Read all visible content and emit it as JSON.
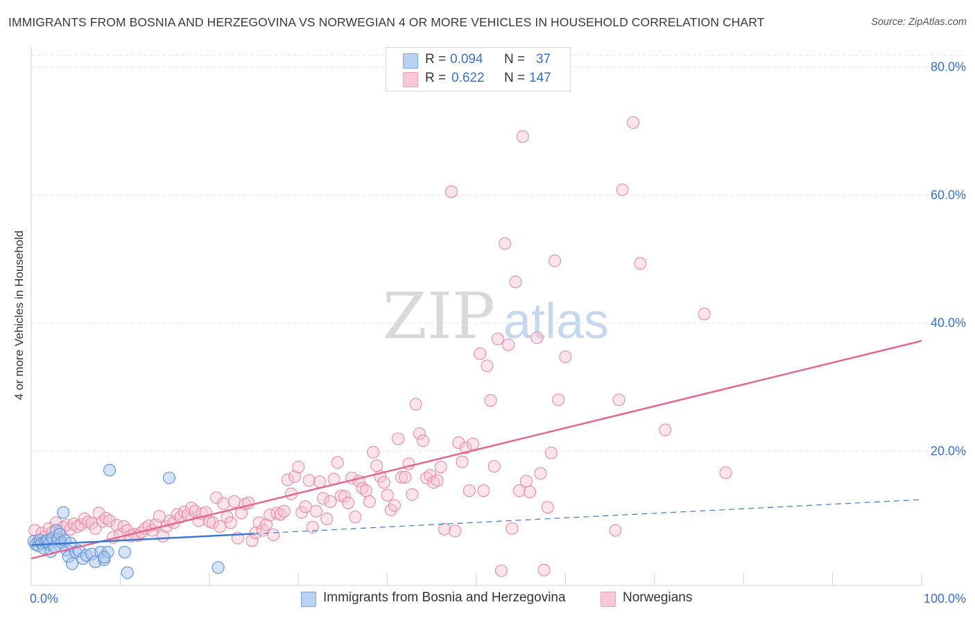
{
  "title": "IMMIGRANTS FROM BOSNIA AND HERZEGOVINA VS NORWEGIAN 4 OR MORE VEHICLES IN HOUSEHOLD CORRELATION CHART",
  "source": "Source: ZipAtlas.com",
  "watermark": {
    "zip": "ZIP",
    "atlas": "atlas"
  },
  "legend": {
    "rows": [
      {
        "r_label": "R =",
        "r_value": "0.094",
        "n_label": "N =",
        "n_value": "37"
      },
      {
        "r_label": "R =",
        "r_value": "0.622",
        "n_label": "N =",
        "n_value": "147"
      }
    ]
  },
  "bottom_legend": [
    "Immigrants from Bosnia and Herzegovina",
    "Norwegians"
  ],
  "colors": {
    "blue_fill": "#a9c8ef",
    "blue_stroke": "#5b8fd6",
    "blue_line": "#3b78d0",
    "pink_fill": "#f8c3d3",
    "pink_stroke": "#e88aa8",
    "pink_line": "#e5668f",
    "grid": "#e2e2e2",
    "tick_text": "#3a6fc9"
  },
  "chart_data": {
    "type": "scatter",
    "title": "IMMIGRANTS FROM BOSNIA AND HERZEGOVINA VS NORWEGIAN 4 OR MORE VEHICLES IN HOUSEHOLD CORRELATION CHART",
    "xlabel": "",
    "ylabel": "4 or more Vehicles in Household",
    "xlim": [
      0,
      100
    ],
    "ylim": [
      -1,
      82
    ],
    "x_ticks": [
      "0.0%",
      "100.0%"
    ],
    "y_ticks": [
      {
        "value": 20,
        "label": "20.0%"
      },
      {
        "value": 40,
        "label": "40.0%"
      },
      {
        "value": 60,
        "label": "60.0%"
      },
      {
        "value": 80,
        "label": "80.0%"
      }
    ],
    "series": [
      {
        "name": "Immigrants from Bosnia and Herzegovina",
        "R": 0.094,
        "N": 37,
        "trend": {
          "x0": 0,
          "y0": 5.3,
          "x1": 100,
          "y1": 12.4,
          "solid_until": 25
        },
        "points": [
          [
            0.3,
            5.9
          ],
          [
            0.5,
            5.4
          ],
          [
            0.8,
            5.2
          ],
          [
            1.0,
            6.1
          ],
          [
            1.2,
            5.6
          ],
          [
            1.4,
            4.8
          ],
          [
            1.6,
            5.8
          ],
          [
            1.8,
            6.0
          ],
          [
            2.0,
            5.5
          ],
          [
            2.2,
            4.3
          ],
          [
            2.4,
            6.4
          ],
          [
            2.6,
            5.0
          ],
          [
            2.8,
            7.6
          ],
          [
            3.0,
            6.2
          ],
          [
            3.2,
            7.0
          ],
          [
            3.4,
            5.7
          ],
          [
            3.6,
            10.4
          ],
          [
            3.8,
            6.0
          ],
          [
            4.0,
            4.5
          ],
          [
            4.2,
            3.5
          ],
          [
            4.4,
            5.6
          ],
          [
            4.6,
            2.4
          ],
          [
            5.0,
            4.2
          ],
          [
            5.4,
            4.4
          ],
          [
            5.8,
            3.2
          ],
          [
            6.2,
            3.7
          ],
          [
            6.8,
            3.9
          ],
          [
            7.2,
            2.7
          ],
          [
            7.8,
            4.2
          ],
          [
            8.2,
            3.0
          ],
          [
            8.6,
            4.2
          ],
          [
            8.2,
            3.4
          ],
          [
            8.8,
            17.0
          ],
          [
            10.5,
            4.2
          ],
          [
            10.8,
            1.0
          ],
          [
            15.5,
            15.8
          ],
          [
            21.0,
            1.8
          ]
        ]
      },
      {
        "name": "Norwegians",
        "R": 0.622,
        "N": 147,
        "trend": {
          "x0": 0,
          "y0": 3.2,
          "x1": 100,
          "y1": 37.2
        },
        "points": [
          [
            0.4,
            7.6
          ],
          [
            0.8,
            6.0
          ],
          [
            1.2,
            7.2
          ],
          [
            1.6,
            6.6
          ],
          [
            2.0,
            7.9
          ],
          [
            2.4,
            7.3
          ],
          [
            2.8,
            8.8
          ],
          [
            3.2,
            7.5
          ],
          [
            3.6,
            8.1
          ],
          [
            4.0,
            8.4
          ],
          [
            4.4,
            7.8
          ],
          [
            4.8,
            8.6
          ],
          [
            5.2,
            8.2
          ],
          [
            5.6,
            8.5
          ],
          [
            6.0,
            9.4
          ],
          [
            6.4,
            8.9
          ],
          [
            6.8,
            8.7
          ],
          [
            7.2,
            7.9
          ],
          [
            7.6,
            10.3
          ],
          [
            8.0,
            9.0
          ],
          [
            8.4,
            9.5
          ],
          [
            8.8,
            9.1
          ],
          [
            9.2,
            6.5
          ],
          [
            9.6,
            8.4
          ],
          [
            10.0,
            7.0
          ],
          [
            10.4,
            8.2
          ],
          [
            10.8,
            7.6
          ],
          [
            11.2,
            6.7
          ],
          [
            11.6,
            7.0
          ],
          [
            12.0,
            6.8
          ],
          [
            12.4,
            7.3
          ],
          [
            12.8,
            7.9
          ],
          [
            13.2,
            8.3
          ],
          [
            13.6,
            7.6
          ],
          [
            14.0,
            8.5
          ],
          [
            14.4,
            9.8
          ],
          [
            14.8,
            6.7
          ],
          [
            15.2,
            8.2
          ],
          [
            15.6,
            9.1
          ],
          [
            16.0,
            8.8
          ],
          [
            16.4,
            10.1
          ],
          [
            16.8,
            9.7
          ],
          [
            17.2,
            10.5
          ],
          [
            17.6,
            10.0
          ],
          [
            18.0,
            11.1
          ],
          [
            18.4,
            10.6
          ],
          [
            18.8,
            9.1
          ],
          [
            19.2,
            10.2
          ],
          [
            19.6,
            10.4
          ],
          [
            20.0,
            9.0
          ],
          [
            20.4,
            8.8
          ],
          [
            20.8,
            12.7
          ],
          [
            21.2,
            8.2
          ],
          [
            21.6,
            11.8
          ],
          [
            22.0,
            9.7
          ],
          [
            22.4,
            8.8
          ],
          [
            22.8,
            12.1
          ],
          [
            23.2,
            6.4
          ],
          [
            23.6,
            10.3
          ],
          [
            24.0,
            11.7
          ],
          [
            24.4,
            11.9
          ],
          [
            24.8,
            6.0
          ],
          [
            25.2,
            7.2
          ],
          [
            25.6,
            8.8
          ],
          [
            26.0,
            7.6
          ],
          [
            26.4,
            8.5
          ],
          [
            26.8,
            10.0
          ],
          [
            27.2,
            6.9
          ],
          [
            27.6,
            10.3
          ],
          [
            28.0,
            10.1
          ],
          [
            28.4,
            10.6
          ],
          [
            28.8,
            15.5
          ],
          [
            29.2,
            13.3
          ],
          [
            29.6,
            16.0
          ],
          [
            30.0,
            17.5
          ],
          [
            30.4,
            10.4
          ],
          [
            30.8,
            11.3
          ],
          [
            31.2,
            15.4
          ],
          [
            31.6,
            8.1
          ],
          [
            32.0,
            10.6
          ],
          [
            32.4,
            15.2
          ],
          [
            32.8,
            12.6
          ],
          [
            33.2,
            9.4
          ],
          [
            33.6,
            12.1
          ],
          [
            34.0,
            15.6
          ],
          [
            34.4,
            18.2
          ],
          [
            34.8,
            13.0
          ],
          [
            35.2,
            12.9
          ],
          [
            35.6,
            11.9
          ],
          [
            36.0,
            15.8
          ],
          [
            36.4,
            9.7
          ],
          [
            36.8,
            15.3
          ],
          [
            37.2,
            14.2
          ],
          [
            37.6,
            13.8
          ],
          [
            38.0,
            12.1
          ],
          [
            38.4,
            19.8
          ],
          [
            38.8,
            17.7
          ],
          [
            39.2,
            16.0
          ],
          [
            39.6,
            15.1
          ],
          [
            40.0,
            13.1
          ],
          [
            40.4,
            10.8
          ],
          [
            40.8,
            11.5
          ],
          [
            41.2,
            21.9
          ],
          [
            41.6,
            15.9
          ],
          [
            42.0,
            15.9
          ],
          [
            42.4,
            18.0
          ],
          [
            42.8,
            13.2
          ],
          [
            43.2,
            27.3
          ],
          [
            43.6,
            22.7
          ],
          [
            44.0,
            21.6
          ],
          [
            44.4,
            15.8
          ],
          [
            44.8,
            16.2
          ],
          [
            45.2,
            15.1
          ],
          [
            45.6,
            15.4
          ],
          [
            46.0,
            17.5
          ],
          [
            46.4,
            7.8
          ],
          [
            47.2,
            60.5
          ],
          [
            47.6,
            7.5
          ],
          [
            48.0,
            21.3
          ],
          [
            48.4,
            18.3
          ],
          [
            48.8,
            20.5
          ],
          [
            49.2,
            13.8
          ],
          [
            49.6,
            21.1
          ],
          [
            50.4,
            35.2
          ],
          [
            50.8,
            13.8
          ],
          [
            51.2,
            33.3
          ],
          [
            51.6,
            27.9
          ],
          [
            52.0,
            17.6
          ],
          [
            52.4,
            37.5
          ],
          [
            52.8,
            1.3
          ],
          [
            53.2,
            52.4
          ],
          [
            53.6,
            36.6
          ],
          [
            54.0,
            7.9
          ],
          [
            54.4,
            46.4
          ],
          [
            54.8,
            13.8
          ],
          [
            55.2,
            69.1
          ],
          [
            55.6,
            15.3
          ],
          [
            56.0,
            13.6
          ],
          [
            56.8,
            37.7
          ],
          [
            57.2,
            16.5
          ],
          [
            57.6,
            1.4
          ],
          [
            58.0,
            11.2
          ],
          [
            58.4,
            19.7
          ],
          [
            58.8,
            49.7
          ],
          [
            59.2,
            28.0
          ],
          [
            60.0,
            34.7
          ],
          [
            65.6,
            7.6
          ],
          [
            66.0,
            28.0
          ],
          [
            66.4,
            60.8
          ],
          [
            67.6,
            71.3
          ],
          [
            68.4,
            49.3
          ],
          [
            71.2,
            23.3
          ],
          [
            75.6,
            41.4
          ],
          [
            78.0,
            16.6
          ]
        ]
      }
    ]
  }
}
